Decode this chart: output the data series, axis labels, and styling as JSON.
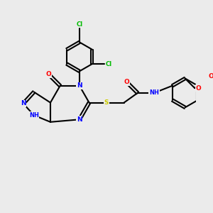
{
  "bg_color": "#ebebeb",
  "bond_color": "#000000",
  "atom_colors": {
    "N": "#0000ff",
    "O": "#ff0000",
    "S": "#cccc00",
    "Cl": "#00bb00",
    "C": "#000000",
    "H": "#000000"
  },
  "figsize": [
    3.0,
    3.0
  ],
  "dpi": 100
}
